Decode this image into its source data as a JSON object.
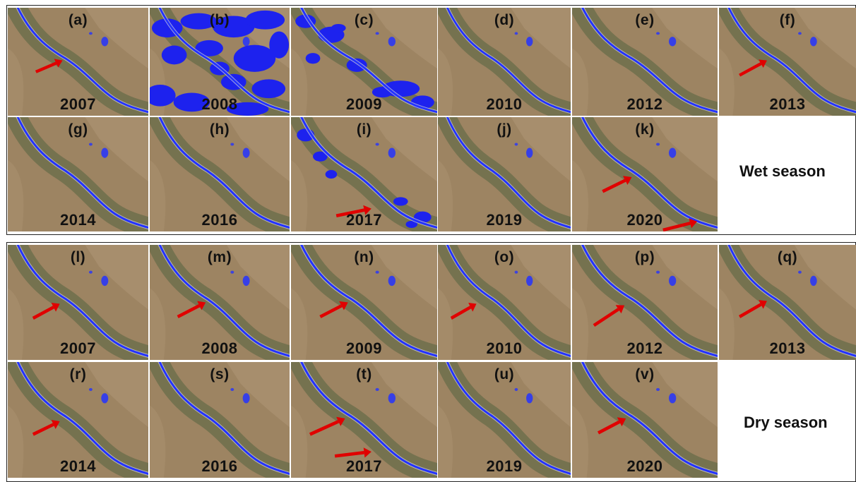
{
  "colors": {
    "land": "#9d8462",
    "land_light": "#ad9474",
    "riparian": "#6e6f4c",
    "river": "#2433ff",
    "floodwater": "#1d22ee",
    "arrow": "#e00000"
  },
  "wet": {
    "title": "Wet season",
    "panels": [
      {
        "letter": "(a)",
        "year": "2007"
      },
      {
        "letter": "(b)",
        "year": "2008"
      },
      {
        "letter": "(c)",
        "year": "2009"
      },
      {
        "letter": "(d)",
        "year": "2010"
      },
      {
        "letter": "(e)",
        "year": "2012"
      },
      {
        "letter": "(f)",
        "year": "2013"
      },
      {
        "letter": "(g)",
        "year": "2014"
      },
      {
        "letter": "(h)",
        "year": "2016"
      },
      {
        "letter": "(i)",
        "year": "2017"
      },
      {
        "letter": "(j)",
        "year": "2019"
      },
      {
        "letter": "(k)",
        "year": "2020"
      }
    ]
  },
  "dry": {
    "title": "Dry season",
    "panels": [
      {
        "letter": "(l)",
        "year": "2007"
      },
      {
        "letter": "(m)",
        "year": "2008"
      },
      {
        "letter": "(n)",
        "year": "2009"
      },
      {
        "letter": "(o)",
        "year": "2010"
      },
      {
        "letter": "(p)",
        "year": "2012"
      },
      {
        "letter": "(q)",
        "year": "2013"
      },
      {
        "letter": "(r)",
        "year": "2014"
      },
      {
        "letter": "(s)",
        "year": "2016"
      },
      {
        "letter": "(t)",
        "year": "2017"
      },
      {
        "letter": "(u)",
        "year": "2019"
      },
      {
        "letter": "(v)",
        "year": "2020"
      }
    ]
  }
}
